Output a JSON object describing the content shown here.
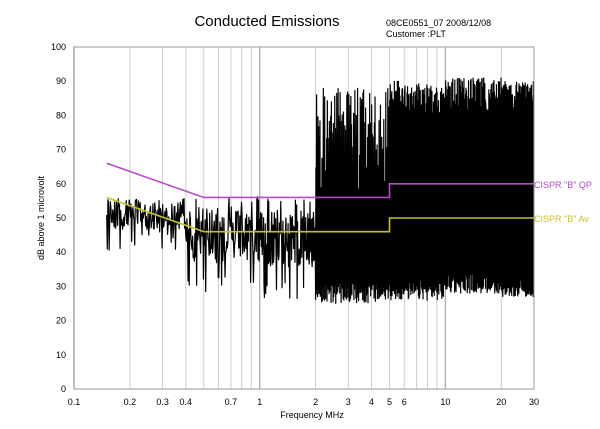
{
  "header": {
    "title": "Conducted Emissions",
    "report_id": "08CE0551_07 2008/12/08",
    "customer": "Customer :PLT"
  },
  "chart_data": {
    "type": "line",
    "title": "Conducted Emissions",
    "xlabel": "Frequency MHz",
    "ylabel": "dB above 1 microvolt",
    "xscale": "log",
    "xlim": [
      0.1,
      30
    ],
    "ylim": [
      0,
      100
    ],
    "x_tick_labels": [
      "0.1",
      "0.2",
      "0.3",
      "0.4",
      "0.7",
      "1",
      "2",
      "3",
      "4",
      "5",
      "6",
      "10",
      "20",
      "30"
    ],
    "x_tick_values": [
      0.1,
      0.2,
      0.3,
      0.4,
      0.7,
      1,
      2,
      3,
      4,
      5,
      6,
      10,
      20,
      30
    ],
    "y_tick_values": [
      0,
      10,
      20,
      30,
      40,
      50,
      60,
      70,
      80,
      90,
      100
    ],
    "grid": {
      "vertical": true,
      "horizontal": false
    },
    "series": [
      {
        "name": "CISPR \"B\" QP",
        "color": "#b44cc4",
        "points": [
          [
            0.15,
            66
          ],
          [
            0.5,
            56
          ],
          [
            5,
            56
          ],
          [
            5,
            60
          ],
          [
            30,
            60
          ]
        ]
      },
      {
        "name": "CISPR \"B\" Av",
        "color": "#c8c030",
        "points": [
          [
            0.15,
            56
          ],
          [
            0.5,
            46
          ],
          [
            5,
            46
          ],
          [
            5,
            50
          ],
          [
            30,
            50
          ]
        ]
      },
      {
        "name": "",
        "color": "#000000",
        "envelope": [
          {
            "f_start": 0.15,
            "f_end": 0.4,
            "low": 40,
            "high": 56
          },
          {
            "f_start": 0.4,
            "f_end": 1.0,
            "low": 27,
            "high": 57
          },
          {
            "f_start": 1.0,
            "f_end": 2.0,
            "low": 26,
            "high": 56
          },
          {
            "f_start": 2.0,
            "f_end": 5.0,
            "low": 25,
            "high": 88
          },
          {
            "f_start": 5.0,
            "f_end": 10.0,
            "low": 26,
            "high": 90
          },
          {
            "f_start": 10.0,
            "f_end": 20.0,
            "low": 28,
            "high": 91
          },
          {
            "f_start": 20.0,
            "f_end": 30.0,
            "low": 27,
            "high": 90
          }
        ]
      }
    ]
  }
}
